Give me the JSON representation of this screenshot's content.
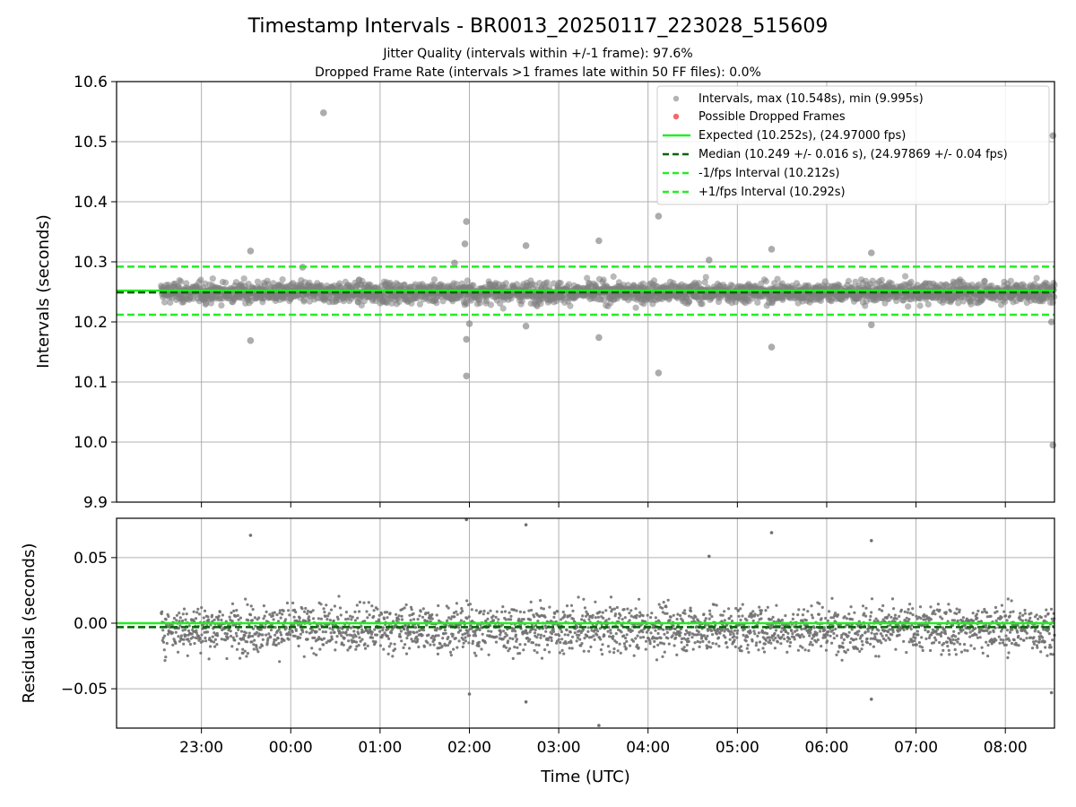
{
  "chart_data": [
    {
      "type": "scatter",
      "title": "Timestamp Intervals - BR0013_20250117_223028_515609",
      "subtitle_lines": [
        "Jitter Quality (intervals within +/-1 frame): 97.6%",
        "Dropped Frame Rate (intervals >1 frames late within 50 FF files): 0.0%"
      ],
      "xlabel": "",
      "ylabel": "Intervals (seconds)",
      "ylim": [
        9.9,
        10.6
      ],
      "yticks": [
        "9.9",
        "10.0",
        "10.1",
        "10.2",
        "10.3",
        "10.4",
        "10.5",
        "10.6"
      ],
      "xlim": [
        "2025-01-17 22:03",
        "2025-01-18 08:33"
      ],
      "grid": true,
      "legend_position": "top-right",
      "legend": [
        "Intervals, max (10.548s), min (9.995s)",
        "Possible Dropped Frames",
        "Expected (10.252s), (24.97000 fps)",
        "Median (10.249 +/- 0.016 s), (24.97869 +/- 0.04 fps)",
        "-1/fps Interval (10.212s)",
        "+1/fps Interval (10.292s)"
      ],
      "lines": [
        {
          "name": "Expected",
          "y": 10.252,
          "color": "#22ee22",
          "style": "solid"
        },
        {
          "name": "Median",
          "y": 10.249,
          "color": "#006400",
          "style": "dashed"
        },
        {
          "name": "-1/fps Interval",
          "y": 10.212,
          "color": "#22ee22",
          "style": "dashed"
        },
        {
          "name": "+1/fps Interval",
          "y": 10.292,
          "color": "#22ee22",
          "style": "dashed"
        }
      ],
      "series": [
        {
          "name": "Intervals",
          "color": "#808080",
          "time_range": [
            "2025-01-17 22:33",
            "2025-01-18 08:33"
          ],
          "typical_range": [
            10.21,
            10.29
          ],
          "outliers": [
            {
              "t": "2025-01-17 23:33",
              "y": 10.318
            },
            {
              "t": "2025-01-17 23:33",
              "y": 10.169
            },
            {
              "t": "2025-01-18 00:08",
              "y": 10.291
            },
            {
              "t": "2025-01-18 00:22",
              "y": 10.548
            },
            {
              "t": "2025-01-18 01:50",
              "y": 10.298
            },
            {
              "t": "2025-01-18 01:57",
              "y": 10.33
            },
            {
              "t": "2025-01-18 01:58",
              "y": 10.367
            },
            {
              "t": "2025-01-18 01:58",
              "y": 10.171
            },
            {
              "t": "2025-01-18 01:58",
              "y": 10.11
            },
            {
              "t": "2025-01-18 02:00",
              "y": 10.197
            },
            {
              "t": "2025-01-18 02:38",
              "y": 10.327
            },
            {
              "t": "2025-01-18 02:38",
              "y": 10.193
            },
            {
              "t": "2025-01-18 03:27",
              "y": 10.335
            },
            {
              "t": "2025-01-18 03:27",
              "y": 10.174
            },
            {
              "t": "2025-01-18 04:07",
              "y": 10.376
            },
            {
              "t": "2025-01-18 04:07",
              "y": 10.115
            },
            {
              "t": "2025-01-18 04:41",
              "y": 10.303
            },
            {
              "t": "2025-01-18 05:23",
              "y": 10.321
            },
            {
              "t": "2025-01-18 05:23",
              "y": 10.158
            },
            {
              "t": "2025-01-18 06:30",
              "y": 10.315
            },
            {
              "t": "2025-01-18 06:30",
              "y": 10.195
            },
            {
              "t": "2025-01-18 08:32",
              "y": 10.51
            },
            {
              "t": "2025-01-18 08:32",
              "y": 9.995
            },
            {
              "t": "2025-01-18 08:31",
              "y": 10.2
            }
          ]
        },
        {
          "name": "Possible Dropped Frames",
          "color": "#ee4444",
          "points": []
        }
      ]
    },
    {
      "type": "scatter",
      "xlabel": "Time (UTC)",
      "ylabel": "Residuals (seconds)",
      "ylim": [
        -0.08,
        0.08
      ],
      "yticks": [
        "−0.05",
        "0.00",
        "0.05"
      ],
      "xticks": [
        "23:00",
        "00:00",
        "01:00",
        "02:00",
        "03:00",
        "04:00",
        "05:00",
        "06:00",
        "07:00",
        "08:00"
      ],
      "xlim": [
        "2025-01-17 22:03",
        "2025-01-18 08:33"
      ],
      "grid": true,
      "lines": [
        {
          "name": "Expected",
          "y": 0.0,
          "color": "#22ee22",
          "style": "solid"
        },
        {
          "name": "Median",
          "y": -0.003,
          "color": "#006400",
          "style": "dashed"
        }
      ],
      "series": [
        {
          "name": "Residuals",
          "color": "#707070",
          "time_range": [
            "2025-01-17 22:33",
            "2025-01-18 08:33"
          ],
          "typical_range": [
            -0.045,
            0.03
          ],
          "outliers": [
            {
              "t": "2025-01-17 23:33",
              "y": 0.067
            },
            {
              "t": "2025-01-18 01:58",
              "y": 0.079
            },
            {
              "t": "2025-01-18 02:38",
              "y": 0.075
            },
            {
              "t": "2025-01-18 03:27",
              "y": -0.078
            },
            {
              "t": "2025-01-18 05:23",
              "y": 0.069
            },
            {
              "t": "2025-01-18 06:30",
              "y": 0.063
            },
            {
              "t": "2025-01-18 04:41",
              "y": 0.051
            },
            {
              "t": "2025-01-18 02:38",
              "y": -0.06
            },
            {
              "t": "2025-01-18 06:30",
              "y": -0.058
            },
            {
              "t": "2025-01-18 08:31",
              "y": -0.053
            },
            {
              "t": "2025-01-18 02:00",
              "y": -0.054
            }
          ]
        }
      ]
    }
  ],
  "colors": {
    "grid": "#b0b0b0",
    "expected": "#22ee22",
    "median": "#006400",
    "points": "#808080"
  }
}
